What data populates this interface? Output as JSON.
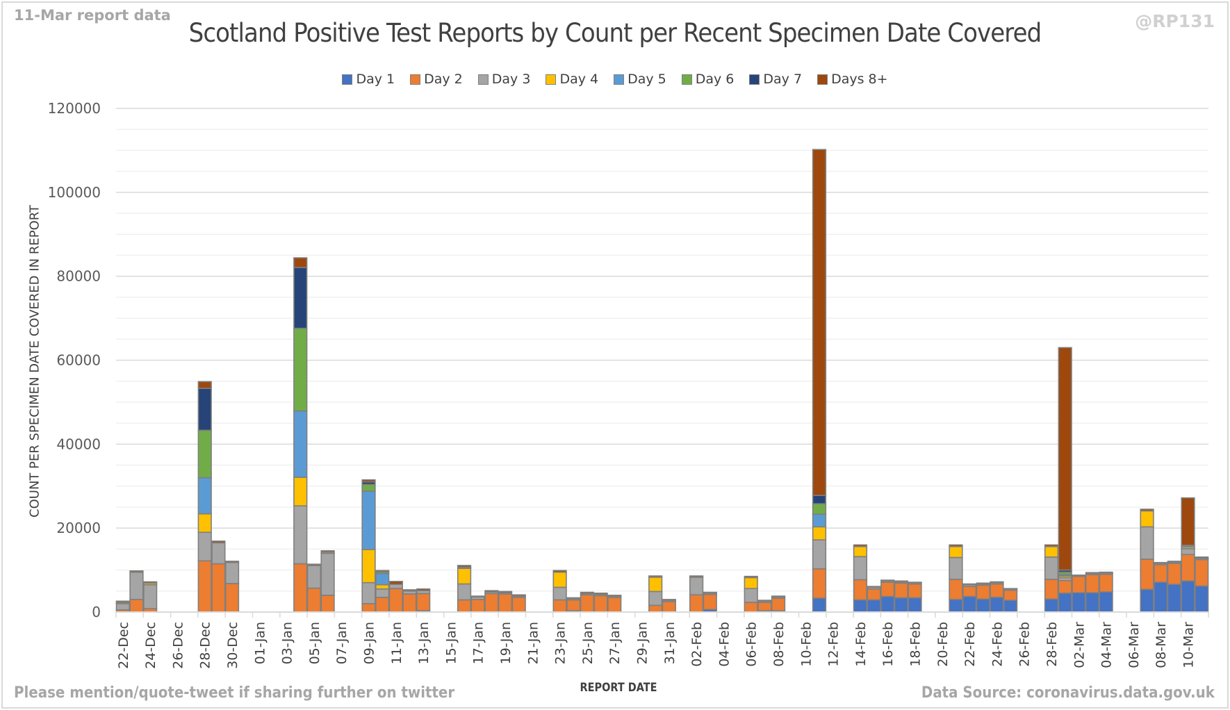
{
  "header": {
    "corner_left": "11-Mar report data",
    "corner_right": "@RP131"
  },
  "footer": {
    "left": "Please mention/quote-tweet if sharing further on twitter",
    "right": "Data Source: coronavirus.data.gov.uk"
  },
  "chart_data": {
    "type": "bar",
    "stacked": true,
    "title": "Scotland Positive Test Reports by Count per Recent Specimen Date Covered",
    "xlabel": "REPORT DATE",
    "ylabel": "COUNT PER SPECIMEN DATE COVERED IN REPORT",
    "ylim": [
      0,
      120000
    ],
    "yticks": [
      "0",
      "20000",
      "40000",
      "60000",
      "80000",
      "100000",
      "120000"
    ],
    "ytick_values": [
      0,
      20000,
      40000,
      60000,
      80000,
      100000,
      120000
    ],
    "grid": true,
    "legend_position": "top",
    "categories": [
      "22-Dec",
      "23-Dec",
      "24-Dec",
      "25-Dec",
      "26-Dec",
      "27-Dec",
      "28-Dec",
      "29-Dec",
      "30-Dec",
      "31-Dec",
      "01-Jan",
      "02-Jan",
      "03-Jan",
      "04-Jan",
      "05-Jan",
      "06-Jan",
      "07-Jan",
      "08-Jan",
      "09-Jan",
      "10-Jan",
      "11-Jan",
      "12-Jan",
      "13-Jan",
      "14-Jan",
      "15-Jan",
      "16-Jan",
      "17-Jan",
      "18-Jan",
      "19-Jan",
      "20-Jan",
      "21-Jan",
      "22-Jan",
      "23-Jan",
      "24-Jan",
      "25-Jan",
      "26-Jan",
      "27-Jan",
      "28-Jan",
      "29-Jan",
      "30-Jan",
      "31-Jan",
      "01-Feb",
      "02-Feb",
      "03-Feb",
      "04-Feb",
      "05-Feb",
      "06-Feb",
      "07-Feb",
      "08-Feb",
      "09-Feb",
      "10-Feb",
      "11-Feb",
      "12-Feb",
      "13-Feb",
      "14-Feb",
      "15-Feb",
      "16-Feb",
      "17-Feb",
      "18-Feb",
      "19-Feb",
      "20-Feb",
      "21-Feb",
      "22-Feb",
      "23-Feb",
      "24-Feb",
      "25-Feb",
      "26-Feb",
      "27-Feb",
      "28-Feb",
      "01-Mar",
      "02-Mar",
      "03-Mar",
      "04-Mar",
      "05-Mar",
      "06-Mar",
      "07-Mar",
      "08-Mar",
      "09-Mar",
      "10-Mar",
      "11-Mar"
    ],
    "tick_labels": [
      "22-Dec",
      "24-Dec",
      "26-Dec",
      "28-Dec",
      "30-Dec",
      "01-Jan",
      "03-Jan",
      "05-Jan",
      "07-Jan",
      "09-Jan",
      "11-Jan",
      "13-Jan",
      "15-Jan",
      "17-Jan",
      "19-Jan",
      "21-Jan",
      "23-Jan",
      "25-Jan",
      "27-Jan",
      "29-Jan",
      "31-Jan",
      "02-Feb",
      "04-Feb",
      "06-Feb",
      "08-Feb",
      "10-Feb",
      "12-Feb",
      "14-Feb",
      "16-Feb",
      "18-Feb",
      "20-Feb",
      "22-Feb",
      "24-Feb",
      "26-Feb",
      "28-Feb",
      "02-Mar",
      "04-Mar",
      "06-Mar",
      "08-Mar",
      "10-Mar"
    ],
    "series": [
      {
        "name": "Day 1",
        "color": "#4472c4",
        "values": [
          0,
          0,
          0,
          0,
          0,
          0,
          0,
          0,
          0,
          0,
          0,
          0,
          0,
          0,
          0,
          0,
          0,
          0,
          0,
          0,
          0,
          0,
          300,
          0,
          0,
          0,
          0,
          0,
          0,
          0,
          0,
          0,
          0,
          300,
          0,
          0,
          0,
          0,
          0,
          0,
          0,
          0,
          0,
          600,
          0,
          0,
          0,
          300,
          300,
          0,
          0,
          3300,
          0,
          0,
          2900,
          2900,
          3700,
          3400,
          3400,
          0,
          0,
          3000,
          3700,
          3100,
          3500,
          2800,
          0,
          0,
          3100,
          4500,
          4600,
          4600,
          4800,
          0,
          0,
          5400,
          7100,
          6600,
          7400,
          6200
        ]
      },
      {
        "name": "Day 2",
        "color": "#ed7d31",
        "values": [
          500,
          3000,
          800,
          0,
          0,
          0,
          12200,
          11500,
          6800,
          0,
          0,
          0,
          0,
          11500,
          5700,
          4000,
          0,
          0,
          2000,
          3500,
          5600,
          4300,
          4100,
          0,
          0,
          2900,
          3000,
          4400,
          4300,
          3500,
          0,
          0,
          2900,
          2600,
          4100,
          3900,
          3500,
          0,
          0,
          1600,
          2500,
          0,
          4100,
          3600,
          0,
          0,
          2300,
          2000,
          3000,
          0,
          0,
          7000,
          0,
          0,
          4800,
          2600,
          3400,
          3500,
          3300,
          0,
          0,
          4800,
          2400,
          3300,
          3200,
          2400,
          0,
          0,
          4700,
          3000,
          3900,
          4300,
          4200,
          0,
          0,
          7200,
          4200,
          5000,
          6300,
          6300
        ]
      },
      {
        "name": "Day 3",
        "color": "#a5a5a5",
        "values": [
          1500,
          6500,
          5700,
          0,
          0,
          0,
          6800,
          5000,
          5000,
          0,
          0,
          0,
          0,
          13800,
          5400,
          10000,
          0,
          0,
          5000,
          2000,
          1000,
          700,
          700,
          0,
          0,
          3800,
          600,
          400,
          300,
          300,
          0,
          0,
          3000,
          300,
          300,
          300,
          300,
          0,
          0,
          3300,
          300,
          0,
          4200,
          300,
          0,
          0,
          3300,
          300,
          300,
          0,
          0,
          6900,
          0,
          0,
          5500,
          400,
          300,
          300,
          300,
          0,
          0,
          5200,
          400,
          300,
          300,
          300,
          0,
          0,
          5300,
          700,
          200,
          300,
          300,
          0,
          0,
          7700,
          300,
          300,
          1400,
          300
        ]
      },
      {
        "name": "Day 4",
        "color": "#ffc000",
        "values": [
          300,
          0,
          400,
          0,
          0,
          0,
          4400,
          0,
          0,
          0,
          0,
          0,
          0,
          6800,
          0,
          300,
          0,
          0,
          7900,
          1000,
          0,
          0,
          0,
          0,
          0,
          3700,
          0,
          0,
          0,
          0,
          0,
          0,
          3600,
          0,
          0,
          0,
          0,
          0,
          0,
          3400,
          0,
          0,
          0,
          0,
          0,
          0,
          2600,
          0,
          0,
          0,
          0,
          3100,
          0,
          0,
          2400,
          0,
          0,
          0,
          0,
          0,
          0,
          2600,
          0,
          0,
          0,
          0,
          0,
          0,
          2500,
          400,
          0,
          0,
          0,
          0,
          0,
          3800,
          0,
          0,
          400,
          0
        ]
      },
      {
        "name": "Day 5",
        "color": "#5b9bd5",
        "values": [
          0,
          0,
          0,
          0,
          0,
          0,
          8600,
          0,
          0,
          0,
          0,
          0,
          0,
          15800,
          0,
          0,
          0,
          0,
          13900,
          2700,
          0,
          0,
          0,
          0,
          0,
          300,
          0,
          0,
          0,
          0,
          0,
          0,
          0,
          0,
          0,
          0,
          0,
          0,
          0,
          0,
          0,
          0,
          0,
          0,
          0,
          0,
          0,
          0,
          0,
          0,
          0,
          3000,
          0,
          0,
          0,
          0,
          0,
          0,
          0,
          0,
          0,
          0,
          0,
          0,
          0,
          0,
          0,
          0,
          0,
          300,
          0,
          0,
          0,
          0,
          0,
          0,
          0,
          0,
          400,
          0
        ]
      },
      {
        "name": "Day 6",
        "color": "#70ad47",
        "values": [
          0,
          0,
          0,
          0,
          0,
          0,
          11300,
          0,
          0,
          0,
          0,
          0,
          0,
          19700,
          0,
          0,
          0,
          0,
          1600,
          400,
          0,
          0,
          0,
          0,
          0,
          0,
          0,
          0,
          0,
          0,
          0,
          0,
          0,
          0,
          0,
          0,
          0,
          0,
          0,
          0,
          0,
          0,
          0,
          0,
          0,
          0,
          0,
          0,
          0,
          0,
          0,
          2500,
          0,
          0,
          0,
          0,
          0,
          0,
          0,
          0,
          0,
          0,
          0,
          0,
          0,
          0,
          0,
          0,
          0,
          600,
          0,
          0,
          0,
          0,
          0,
          0,
          0,
          0,
          0,
          0
        ]
      },
      {
        "name": "Day 7",
        "color": "#264478",
        "values": [
          0,
          0,
          0,
          0,
          0,
          0,
          10000,
          0,
          0,
          0,
          0,
          0,
          0,
          14500,
          0,
          0,
          0,
          0,
          600,
          0,
          0,
          0,
          0,
          0,
          0,
          0,
          0,
          0,
          0,
          0,
          0,
          0,
          0,
          0,
          0,
          0,
          0,
          0,
          0,
          0,
          0,
          0,
          0,
          0,
          0,
          0,
          0,
          0,
          0,
          0,
          0,
          2000,
          0,
          0,
          0,
          0,
          0,
          0,
          0,
          0,
          0,
          0,
          0,
          0,
          0,
          0,
          0,
          0,
          0,
          500,
          0,
          0,
          0,
          0,
          0,
          0,
          0,
          0,
          0,
          0
        ]
      },
      {
        "name": "Days 8+",
        "color": "#9e480e",
        "values": [
          300,
          300,
          300,
          0,
          0,
          0,
          1600,
          400,
          300,
          0,
          0,
          0,
          0,
          2300,
          300,
          300,
          0,
          0,
          500,
          300,
          700,
          300,
          400,
          0,
          0,
          400,
          200,
          300,
          300,
          300,
          0,
          0,
          400,
          200,
          300,
          300,
          200,
          0,
          0,
          300,
          200,
          0,
          300,
          200,
          0,
          0,
          300,
          200,
          200,
          0,
          0,
          82400,
          0,
          0,
          400,
          200,
          200,
          200,
          100,
          0,
          0,
          400,
          200,
          200,
          200,
          100,
          0,
          0,
          400,
          53000,
          100,
          200,
          200,
          0,
          0,
          400,
          200,
          200,
          11300,
          300
        ]
      }
    ]
  }
}
